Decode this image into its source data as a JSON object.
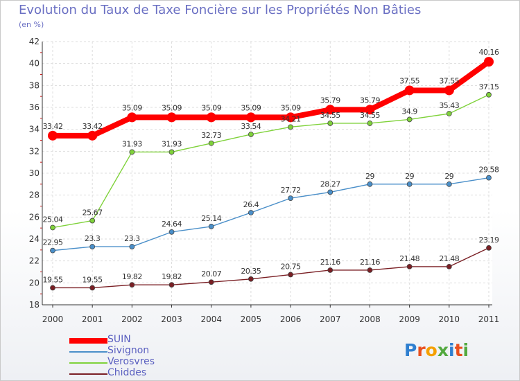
{
  "title": "Evolution du Taux de Taxe Foncière sur les Propriétés Non Bâties",
  "subtitle": "(en %)",
  "logo": {
    "text": "Proxiti",
    "colors": [
      "#2f7fd0",
      "#e94f1d",
      "#f5a000",
      "#53a93f",
      "#2f7fd0",
      "#e94f1d",
      "#53a93f"
    ]
  },
  "chart_data": {
    "type": "line",
    "x": [
      "2000",
      "2001",
      "2002",
      "2003",
      "2004",
      "2005",
      "2006",
      "2007",
      "2008",
      "2009",
      "2010",
      "2011"
    ],
    "ylim": [
      18,
      42
    ],
    "yticks": [
      18,
      20,
      22,
      24,
      26,
      28,
      30,
      32,
      34,
      36,
      38,
      40,
      42
    ],
    "grid": true,
    "legend_position": "bottom-left",
    "series": [
      {
        "name": "SUIN",
        "color": "#ff0000",
        "values": [
          33.42,
          33.42,
          35.09,
          35.09,
          35.09,
          35.09,
          35.09,
          35.79,
          35.79,
          37.55,
          37.55,
          40.16
        ],
        "labels": [
          "33.42",
          "33.42",
          "35.09",
          "35.09",
          "35.09",
          "35.09",
          "35.09",
          "35.79",
          "35.79",
          "37.55",
          "37.55",
          "40.16"
        ]
      },
      {
        "name": "Sivignon",
        "color": "#4a8fc9",
        "values": [
          22.95,
          23.3,
          23.3,
          24.64,
          25.14,
          26.4,
          27.72,
          28.27,
          29,
          29,
          29,
          29.58
        ],
        "labels": [
          "22.95",
          "23.3",
          "23.3",
          "24.64",
          "25.14",
          "26.4",
          "27.72",
          "28.27",
          "29",
          "29",
          "29",
          "29.58"
        ]
      },
      {
        "name": "Verosvres",
        "color": "#7fd23a",
        "values": [
          25.04,
          25.67,
          31.93,
          31.93,
          32.73,
          33.54,
          34.21,
          34.55,
          34.55,
          34.9,
          35.43,
          37.15
        ],
        "labels": [
          "25.04",
          "25.67",
          "31.93",
          "31.93",
          "32.73",
          "33.54",
          "34.21",
          "34.55",
          "34.55",
          "34.9",
          "35.43",
          "37.15"
        ]
      },
      {
        "name": "Chiddes",
        "color": "#7a1f24",
        "values": [
          19.55,
          19.55,
          19.82,
          19.82,
          20.07,
          20.35,
          20.75,
          21.16,
          21.16,
          21.48,
          21.48,
          23.19
        ],
        "labels": [
          "19.55",
          "19.55",
          "19.82",
          "19.82",
          "20.07",
          "20.35",
          "20.75",
          "21.16",
          "21.16",
          "21.48",
          "21.48",
          "23.19"
        ]
      }
    ]
  }
}
